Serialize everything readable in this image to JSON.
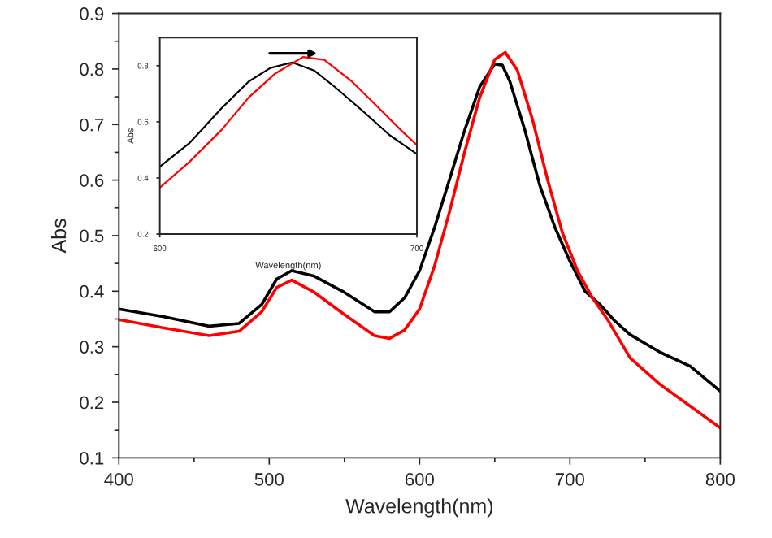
{
  "chart_data": [
    {
      "type": "line",
      "xlabel": "Wavelength(nm)",
      "ylabel": "Abs",
      "xlim": [
        400,
        800
      ],
      "ylim": [
        0.1,
        0.9
      ],
      "xticks": [
        400,
        500,
        600,
        700,
        800
      ],
      "yticks": [
        0.1,
        0.2,
        0.3,
        0.4,
        0.5,
        0.6,
        0.7,
        0.8,
        0.9
      ],
      "grid": false,
      "legend": false,
      "marker": "none",
      "line_style": "solid",
      "series": [
        {
          "color": "#000000",
          "x": [
            400,
            430,
            460,
            480,
            495,
            505,
            515,
            530,
            550,
            570,
            580,
            590,
            600,
            610,
            620,
            630,
            640,
            650,
            655,
            660,
            670,
            680,
            690,
            700,
            710,
            720,
            730,
            740,
            760,
            780,
            800
          ],
          "values": [
            0.368,
            0.354,
            0.337,
            0.342,
            0.376,
            0.422,
            0.437,
            0.427,
            0.398,
            0.363,
            0.363,
            0.388,
            0.437,
            0.515,
            0.602,
            0.69,
            0.768,
            0.809,
            0.807,
            0.778,
            0.69,
            0.59,
            0.515,
            0.454,
            0.4,
            0.376,
            0.346,
            0.322,
            0.29,
            0.265,
            0.22
          ]
        },
        {
          "color": "#ff0000",
          "x": [
            400,
            430,
            460,
            480,
            495,
            505,
            515,
            530,
            550,
            570,
            580,
            590,
            600,
            610,
            620,
            630,
            640,
            650,
            657,
            665,
            675,
            685,
            695,
            705,
            715,
            725,
            740,
            760,
            780,
            800
          ],
          "values": [
            0.349,
            0.334,
            0.32,
            0.328,
            0.363,
            0.407,
            0.42,
            0.398,
            0.358,
            0.32,
            0.315,
            0.33,
            0.368,
            0.446,
            0.544,
            0.651,
            0.749,
            0.817,
            0.83,
            0.798,
            0.71,
            0.602,
            0.505,
            0.437,
            0.388,
            0.349,
            0.28,
            0.232,
            0.193,
            0.154
          ]
        }
      ]
    },
    {
      "type": "line",
      "xlabel": "Wavelength(nm)",
      "ylabel": "Abs",
      "xlim": [
        600,
        700
      ],
      "ylim": [
        0.2,
        0.9
      ],
      "xticks": [
        600,
        700
      ],
      "yticks": [
        0.2,
        0.4,
        0.6,
        0.8
      ],
      "grid": false,
      "legend": false,
      "marker": "none",
      "line_style": "solid",
      "series": [
        {
          "color": "#000000",
          "x": [
            600,
            611.4,
            624,
            634.6,
            643,
            651.5,
            660,
            668,
            679,
            689.5,
            700
          ],
          "values": [
            0.44,
            0.523,
            0.648,
            0.744,
            0.792,
            0.812,
            0.783,
            0.725,
            0.638,
            0.552,
            0.485
          ]
        },
        {
          "color": "#ff0000",
          "x": [
            600,
            611.4,
            624,
            634.6,
            645,
            655.7,
            664,
            674.7,
            685.3,
            693.7,
            700
          ],
          "values": [
            0.365,
            0.456,
            0.571,
            0.687,
            0.773,
            0.831,
            0.821,
            0.744,
            0.648,
            0.571,
            0.517
          ]
        }
      ]
    }
  ]
}
